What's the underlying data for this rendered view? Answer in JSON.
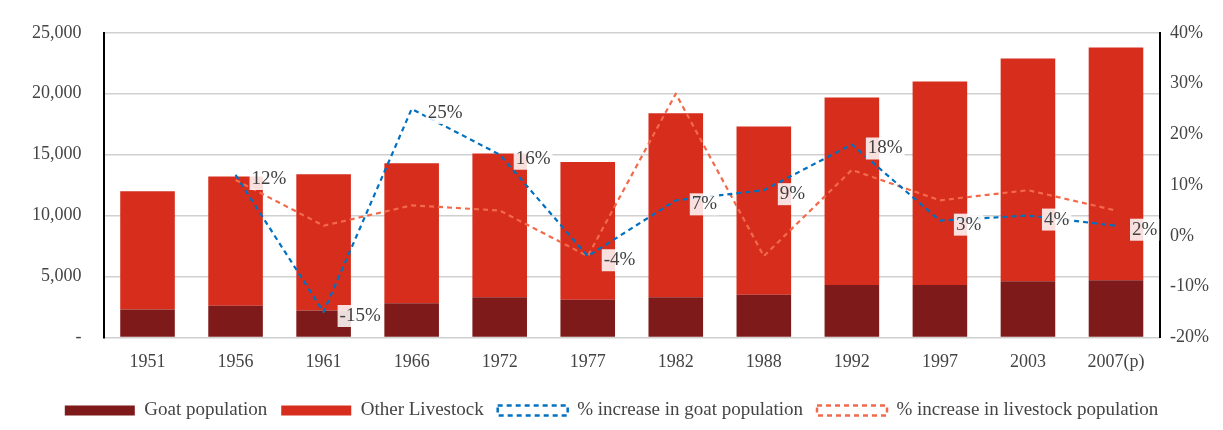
{
  "chart_data": {
    "type": "bar",
    "stacked": true,
    "categories": [
      "1951",
      "1956",
      "1961",
      "1966",
      "1972",
      "1977",
      "1982",
      "1988",
      "1992",
      "1997",
      "2003",
      "2007(p)"
    ],
    "series": [
      {
        "name": "Goat population",
        "color": "#7f1a1a",
        "values": [
          2300,
          2600,
          2200,
          2800,
          3300,
          3100,
          3300,
          3500,
          4300,
          4300,
          4600,
          4700
        ]
      },
      {
        "name": "Other Livestock",
        "color": "#d62d1c",
        "values": [
          9700,
          10600,
          11200,
          11500,
          11800,
          11300,
          15100,
          13800,
          15400,
          16700,
          18300,
          19100
        ]
      },
      {
        "name": "% increase in goat population",
        "type": "line",
        "axis": "y2",
        "line_style": "dashed",
        "marker": "none",
        "color": "#0070c0",
        "values": [
          null,
          12,
          -15,
          25,
          16,
          -4,
          7,
          9,
          18,
          3,
          4,
          2
        ],
        "value_labels": [
          null,
          "12%",
          "-15%",
          "25%",
          "16%",
          "-4%",
          "7%",
          "9%",
          "18%",
          "3%",
          "4%",
          "2%"
        ]
      },
      {
        "name": "% increase in livestock population",
        "type": "line",
        "axis": "y2",
        "line_style": "dashed",
        "marker": "none",
        "color": "#f26a4b",
        "values": [
          null,
          11,
          2,
          6,
          5,
          -4,
          28,
          -4,
          13,
          7,
          9,
          5
        ]
      }
    ],
    "ylim": [
      0,
      25000
    ],
    "yticks": [
      {
        "value": 0,
        "label": "-"
      },
      {
        "value": 5000,
        "label": "5,000"
      },
      {
        "value": 10000,
        "label": "10,000"
      },
      {
        "value": 15000,
        "label": "15,000"
      },
      {
        "value": 20000,
        "label": "20,000"
      },
      {
        "value": 25000,
        "label": "25,000"
      }
    ],
    "y2lim": [
      -20,
      40
    ],
    "y2ticks": [
      {
        "value": -20,
        "label": "-20%"
      },
      {
        "value": -10,
        "label": "-10%"
      },
      {
        "value": 0,
        "label": "0%"
      },
      {
        "value": 10,
        "label": "10%"
      },
      {
        "value": 20,
        "label": "20%"
      },
      {
        "value": 30,
        "label": "30%"
      },
      {
        "value": 40,
        "label": "40%"
      }
    ],
    "grid": "y",
    "legend": "bottom"
  }
}
